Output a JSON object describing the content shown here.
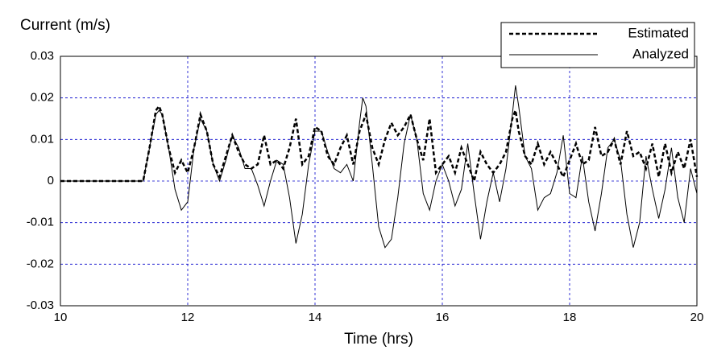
{
  "chart_data": {
    "type": "line",
    "y_label": "Current (m/s)",
    "x_label": "Time (hrs)",
    "x": [
      10,
      10.5,
      11,
      11.3,
      11.4,
      11.5,
      11.55,
      11.6,
      11.7,
      11.8,
      11.9,
      12.0,
      12.1,
      12.2,
      12.3,
      12.4,
      12.5,
      12.6,
      12.7,
      12.8,
      12.9,
      13.0,
      13.1,
      13.2,
      13.3,
      13.4,
      13.5,
      13.6,
      13.7,
      13.8,
      13.9,
      14.0,
      14.1,
      14.2,
      14.3,
      14.4,
      14.5,
      14.6,
      14.7,
      14.75,
      14.8,
      14.9,
      15.0,
      15.1,
      15.2,
      15.3,
      15.4,
      15.5,
      15.6,
      15.7,
      15.8,
      15.9,
      16.0,
      16.1,
      16.2,
      16.3,
      16.4,
      16.5,
      16.6,
      16.7,
      16.8,
      16.9,
      17.0,
      17.1,
      17.15,
      17.2,
      17.3,
      17.4,
      17.5,
      17.6,
      17.7,
      17.8,
      17.9,
      18.0,
      18.1,
      18.2,
      18.3,
      18.4,
      18.5,
      18.6,
      18.7,
      18.8,
      18.9,
      19.0,
      19.1,
      19.2,
      19.3,
      19.4,
      19.5,
      19.6,
      19.7,
      19.8,
      19.9,
      20.0
    ],
    "series": [
      {
        "name": "Estimated",
        "color": "#000000",
        "dash": true,
        "values": [
          0,
          0,
          0,
          0,
          0.008,
          0.017,
          0.018,
          0.016,
          0.008,
          0.002,
          0.005,
          0.002,
          0.008,
          0.016,
          0.012,
          0.004,
          0.001,
          0.006,
          0.011,
          0.007,
          0.004,
          0.003,
          0.004,
          0.011,
          0.004,
          0.005,
          0.003,
          0.008,
          0.015,
          0.004,
          0.006,
          0.013,
          0.012,
          0.006,
          0.004,
          0.008,
          0.011,
          0.004,
          0.012,
          0.014,
          0.016,
          0.008,
          0.004,
          0.01,
          0.014,
          0.011,
          0.013,
          0.016,
          0.01,
          0.005,
          0.015,
          0.002,
          0.004,
          0.006,
          0.002,
          0.008,
          0.004,
          0.0,
          0.007,
          0.004,
          0.002,
          0.004,
          0.007,
          0.015,
          0.017,
          0.012,
          0.006,
          0.004,
          0.009,
          0.004,
          0.007,
          0.004,
          0.001,
          0.005,
          0.009,
          0.004,
          0.005,
          0.013,
          0.006,
          0.007,
          0.01,
          0.004,
          0.012,
          0.006,
          0.007,
          0.003,
          0.009,
          0.001,
          0.009,
          0.002,
          0.007,
          0.003,
          0.01,
          0.001
        ]
      },
      {
        "name": "Analyzed",
        "color": "#000000",
        "dash": false,
        "values": [
          0,
          0,
          0,
          0,
          0.008,
          0.016,
          0.017,
          0.016,
          0.008,
          -0.002,
          -0.007,
          -0.005,
          0.008,
          0.015,
          0.012,
          0.004,
          0.0,
          0.005,
          0.011,
          0.008,
          0.003,
          0.003,
          -0.001,
          -0.006,
          0.0,
          0.005,
          0.004,
          -0.004,
          -0.015,
          -0.008,
          0.004,
          0.012,
          0.012,
          0.007,
          0.003,
          0.002,
          0.004,
          0.0,
          0.014,
          0.02,
          0.018,
          0.004,
          -0.011,
          -0.016,
          -0.014,
          -0.004,
          0.009,
          0.016,
          0.01,
          -0.003,
          -0.007,
          0.0,
          0.004,
          0.0,
          -0.006,
          -0.002,
          0.009,
          -0.003,
          -0.014,
          -0.005,
          0.002,
          -0.005,
          0.003,
          0.016,
          0.023,
          0.018,
          0.006,
          0.003,
          -0.007,
          -0.004,
          -0.003,
          0.002,
          0.011,
          -0.003,
          -0.004,
          0.006,
          -0.005,
          -0.012,
          -0.003,
          0.008,
          0.01,
          0.005,
          -0.008,
          -0.016,
          -0.01,
          0.006,
          -0.002,
          -0.009,
          -0.002,
          0.008,
          -0.004,
          -0.01,
          0.003,
          -0.003
        ]
      }
    ],
    "xlim": [
      10,
      20
    ],
    "xticks": [
      10,
      12,
      14,
      16,
      18,
      20
    ],
    "ylim": [
      -0.03,
      0.03
    ],
    "yticks": [
      -0.03,
      -0.02,
      -0.01,
      0,
      0.01,
      0.02,
      0.03
    ],
    "grid": true,
    "grid_color": "#0000cc",
    "legend": "upper-right"
  }
}
